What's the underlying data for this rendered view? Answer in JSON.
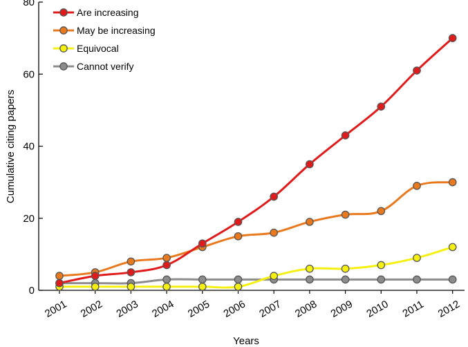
{
  "chart_data": {
    "type": "line",
    "xlabel": "Years",
    "ylabel": "Cumulative citing papers",
    "ylim": [
      0,
      80
    ],
    "yticks": [
      0,
      20,
      40,
      60,
      80
    ],
    "categories": [
      "2001",
      "2002",
      "2003",
      "2004",
      "2005",
      "2006",
      "2007",
      "2008",
      "2009",
      "2010",
      "2011",
      "2012"
    ],
    "legend_position": "top-left",
    "grid": false,
    "series": [
      {
        "name": "Are increasing",
        "color": "#e01b1b",
        "values": [
          2,
          4,
          5,
          7,
          13,
          19,
          26,
          35,
          43,
          51,
          61,
          70
        ]
      },
      {
        "name": "May be increasing",
        "color": "#e8791e",
        "values": [
          4,
          5,
          8,
          9,
          12,
          15,
          16,
          19,
          21,
          22,
          29,
          30
        ]
      },
      {
        "name": "Equivocal",
        "color": "#f5f010",
        "values": [
          1,
          1,
          1,
          1,
          1,
          1,
          4,
          6,
          6,
          7,
          9,
          12
        ]
      },
      {
        "name": "Cannot verify",
        "color": "#8c8c8c",
        "values": [
          2,
          2,
          2,
          3,
          3,
          3,
          3,
          3,
          3,
          3,
          3,
          3
        ]
      }
    ]
  }
}
